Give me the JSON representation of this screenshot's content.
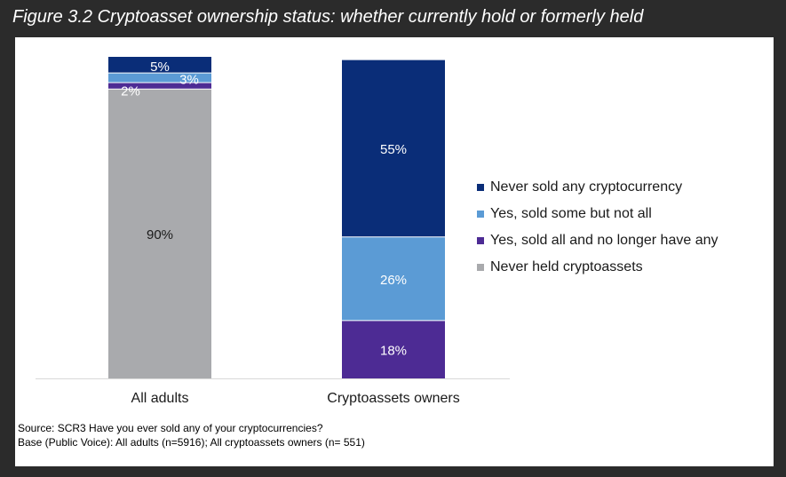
{
  "title": "Figure 3.2 Cryptoasset ownership status: whether currently hold or formerly held",
  "chart_data": {
    "type": "bar",
    "stacked": true,
    "categories": [
      "All adults",
      "Cryptoassets owners"
    ],
    "series": [
      {
        "name": "Never held cryptoassets",
        "color": "#a9aaad",
        "values": [
          90,
          null
        ],
        "labels": [
          "90%",
          ""
        ]
      },
      {
        "name": "Yes, sold all and no longer have any",
        "color": "#4d2b94",
        "values": [
          2,
          18
        ],
        "labels": [
          "2%",
          "18%"
        ]
      },
      {
        "name": "Yes, sold some but not all",
        "color": "#5b9bd5",
        "values": [
          3,
          26
        ],
        "labels": [
          "3%",
          "26%"
        ]
      },
      {
        "name": "Never sold any cryptocurrency",
        "color": "#0a2d78",
        "values": [
          5,
          55
        ],
        "labels": [
          "5%",
          "55%"
        ]
      }
    ],
    "legend_order": [
      "Never sold any cryptocurrency",
      "Yes, sold some but not all",
      "Yes, sold all and no longer have any",
      "Never held cryptoassets"
    ],
    "ylim": [
      0,
      100
    ],
    "legend_position": "right",
    "grid": false
  },
  "source": {
    "line1": "Source: SCR3 Have you ever sold any of your cryptocurrencies?",
    "line2": "Base (Public Voice): All adults (n=5916); All cryptoassets owners (n= 551)"
  }
}
